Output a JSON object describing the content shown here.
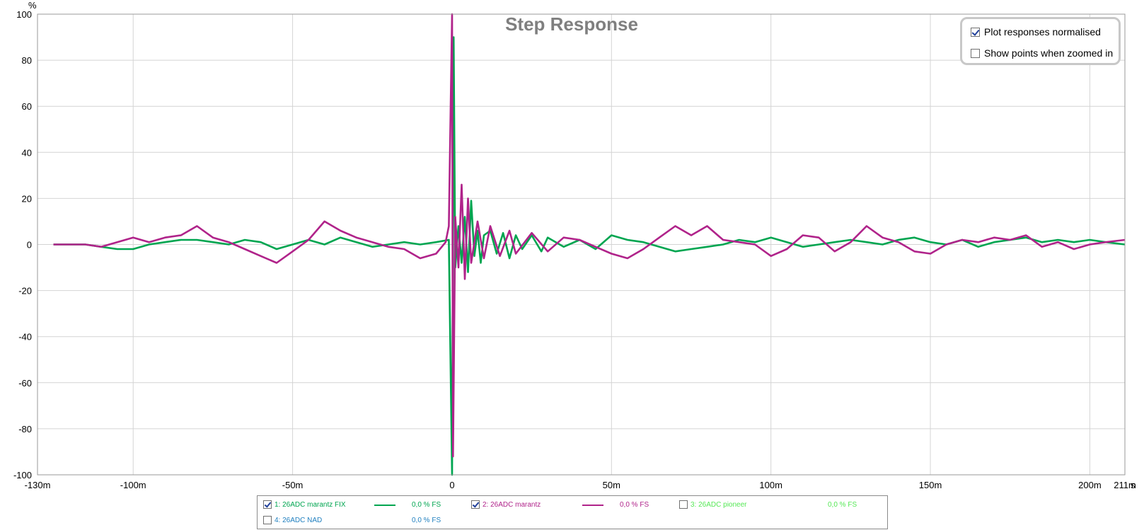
{
  "chart_data": {
    "type": "line",
    "title": "Step Response",
    "ylabel": "%",
    "xlabel": "s",
    "xlim": [
      -0.13,
      0.211
    ],
    "ylim": [
      -100,
      100
    ],
    "grid": true,
    "x_ticks": [
      {
        "value": -0.13,
        "label": "-130m"
      },
      {
        "value": -0.1,
        "label": "-100m"
      },
      {
        "value": -0.05,
        "label": "-50m"
      },
      {
        "value": 0,
        "label": "0"
      },
      {
        "value": 0.05,
        "label": "50m"
      },
      {
        "value": 0.1,
        "label": "100m"
      },
      {
        "value": 0.15,
        "label": "150m"
      },
      {
        "value": 0.2,
        "label": "200m"
      },
      {
        "value": 0.211,
        "label": "211m"
      }
    ],
    "y_ticks": [
      {
        "value": 100,
        "label": "100"
      },
      {
        "value": 80,
        "label": "80"
      },
      {
        "value": 60,
        "label": "60"
      },
      {
        "value": 40,
        "label": "40"
      },
      {
        "value": 20,
        "label": "20"
      },
      {
        "value": 0,
        "label": "0"
      },
      {
        "value": -20,
        "label": "-20"
      },
      {
        "value": -40,
        "label": "-40"
      },
      {
        "value": -60,
        "label": "-60"
      },
      {
        "value": -80,
        "label": "-80"
      },
      {
        "value": -100,
        "label": "-100"
      }
    ],
    "series": [
      {
        "name": "1: 26ADC marantz FIX",
        "color": "#00a550",
        "x": [
          -0.125,
          -0.115,
          -0.11,
          -0.105,
          -0.1,
          -0.095,
          -0.09,
          -0.085,
          -0.08,
          -0.075,
          -0.07,
          -0.065,
          -0.06,
          -0.055,
          -0.05,
          -0.045,
          -0.04,
          -0.035,
          -0.03,
          -0.025,
          -0.02,
          -0.015,
          -0.01,
          -0.005,
          -0.001,
          0,
          0.0005,
          0.001,
          0.002,
          0.003,
          0.004,
          0.005,
          0.006,
          0.007,
          0.008,
          0.009,
          0.01,
          0.012,
          0.014,
          0.016,
          0.018,
          0.02,
          0.022,
          0.025,
          0.028,
          0.03,
          0.035,
          0.04,
          0.045,
          0.05,
          0.055,
          0.06,
          0.065,
          0.07,
          0.075,
          0.08,
          0.085,
          0.09,
          0.095,
          0.1,
          0.105,
          0.11,
          0.115,
          0.12,
          0.125,
          0.13,
          0.135,
          0.14,
          0.145,
          0.15,
          0.155,
          0.16,
          0.165,
          0.17,
          0.175,
          0.18,
          0.185,
          0.19,
          0.195,
          0.2,
          0.205,
          0.211
        ],
        "values": [
          0,
          0,
          -1,
          -2,
          -2,
          0,
          1,
          2,
          2,
          1,
          0,
          2,
          1,
          -2,
          0,
          2,
          0,
          3,
          1,
          -1,
          0,
          1,
          0,
          1,
          2,
          -100,
          90,
          -10,
          8,
          -8,
          12,
          -12,
          19,
          -5,
          6,
          -8,
          4,
          6,
          -4,
          5,
          -6,
          4,
          -2,
          4,
          -3,
          3,
          -1,
          2,
          -2,
          4,
          2,
          1,
          -1,
          -3,
          -2,
          -1,
          0,
          2,
          1,
          3,
          1,
          -1,
          0,
          1,
          2,
          1,
          0,
          2,
          3,
          1,
          0,
          2,
          -1,
          1,
          2,
          3,
          1,
          2,
          1,
          2,
          1,
          0
        ]
      },
      {
        "name": "2: 26ADC marantz",
        "color": "#b0238a",
        "x": [
          -0.125,
          -0.12,
          -0.115,
          -0.11,
          -0.105,
          -0.1,
          -0.095,
          -0.09,
          -0.085,
          -0.08,
          -0.075,
          -0.07,
          -0.065,
          -0.06,
          -0.055,
          -0.05,
          -0.045,
          -0.04,
          -0.035,
          -0.03,
          -0.025,
          -0.02,
          -0.015,
          -0.01,
          -0.005,
          -0.002,
          -0.001,
          0,
          0.0003,
          0.001,
          0.002,
          0.003,
          0.004,
          0.005,
          0.006,
          0.008,
          0.01,
          0.012,
          0.015,
          0.018,
          0.02,
          0.025,
          0.03,
          0.035,
          0.04,
          0.045,
          0.05,
          0.055,
          0.06,
          0.065,
          0.07,
          0.075,
          0.08,
          0.085,
          0.09,
          0.095,
          0.1,
          0.105,
          0.11,
          0.115,
          0.12,
          0.125,
          0.13,
          0.135,
          0.14,
          0.145,
          0.15,
          0.155,
          0.16,
          0.165,
          0.17,
          0.175,
          0.18,
          0.185,
          0.19,
          0.195,
          0.2,
          0.205,
          0.211
        ],
        "values": [
          0,
          0,
          0,
          -1,
          1,
          3,
          1,
          3,
          4,
          8,
          3,
          1,
          -2,
          -5,
          -8,
          -3,
          2,
          10,
          6,
          3,
          1,
          -1,
          -2,
          -6,
          -4,
          1,
          8,
          100,
          -92,
          12,
          -10,
          26,
          -15,
          20,
          -8,
          10,
          -6,
          8,
          -5,
          6,
          -4,
          5,
          -3,
          3,
          2,
          -1,
          -4,
          -6,
          -2,
          3,
          8,
          4,
          8,
          2,
          1,
          0,
          -5,
          -2,
          4,
          3,
          -3,
          1,
          8,
          3,
          1,
          -3,
          -4,
          0,
          2,
          1,
          3,
          2,
          4,
          -1,
          1,
          -2,
          0,
          1,
          2
        ]
      },
      {
        "name": "3: 26ADC pioneer",
        "color": "#55e855",
        "x": [],
        "values": []
      },
      {
        "name": "4: 26ADC NAD",
        "color": "#1f7fbf",
        "x": [],
        "values": []
      }
    ]
  },
  "options": {
    "normalised_label": "Plot responses normalised",
    "normalised_checked": true,
    "show_points_label": "Show points when zoomed in",
    "show_points_checked": false
  },
  "legend": [
    {
      "label": "1: 26ADC marantz FIX",
      "value": "0,0 % FS",
      "color": "#00a550",
      "checked": true
    },
    {
      "label": "2: 26ADC marantz",
      "value": "0,0 % FS",
      "color": "#b0238a",
      "checked": true
    },
    {
      "label": "3: 26ADC pioneer",
      "value": "0,0 % FS",
      "color": "#55e855",
      "checked": false
    },
    {
      "label": "4: 26ADC NAD",
      "value": "0,0 % FS",
      "color": "#1f7fbf",
      "checked": false
    }
  ]
}
